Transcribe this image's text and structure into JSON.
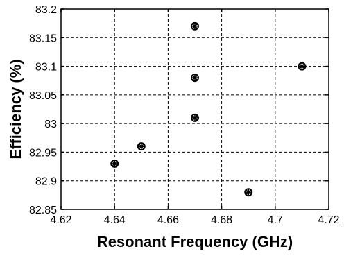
{
  "chart_data": {
    "type": "scatter",
    "xlabel": "Resonant Frequency (GHz)",
    "ylabel": "Efficiency (%)",
    "xlim": [
      4.62,
      4.72
    ],
    "ylim": [
      82.85,
      83.2
    ],
    "xticks": [
      4.62,
      4.64,
      4.66,
      4.68,
      4.7,
      4.72
    ],
    "yticks": [
      82.85,
      82.9,
      82.95,
      83,
      83.05,
      83.1,
      83.15,
      83.2
    ],
    "xtick_labels": [
      "4.62",
      "4.64",
      "4.66",
      "4.68",
      "4.7",
      "4.72"
    ],
    "ytick_labels": [
      "82.85",
      "82.9",
      "82.95",
      "83",
      "83.05",
      "83.1",
      "83.15",
      "83.2"
    ],
    "grid": true,
    "marker": "circled-asterisk",
    "marker_color": "#000000",
    "series": [
      {
        "x": [
          4.64,
          4.65,
          4.67,
          4.67,
          4.67,
          4.69,
          4.71
        ],
        "y": [
          82.93,
          82.96,
          83.01,
          83.08,
          83.17,
          82.88,
          83.1
        ]
      }
    ]
  }
}
